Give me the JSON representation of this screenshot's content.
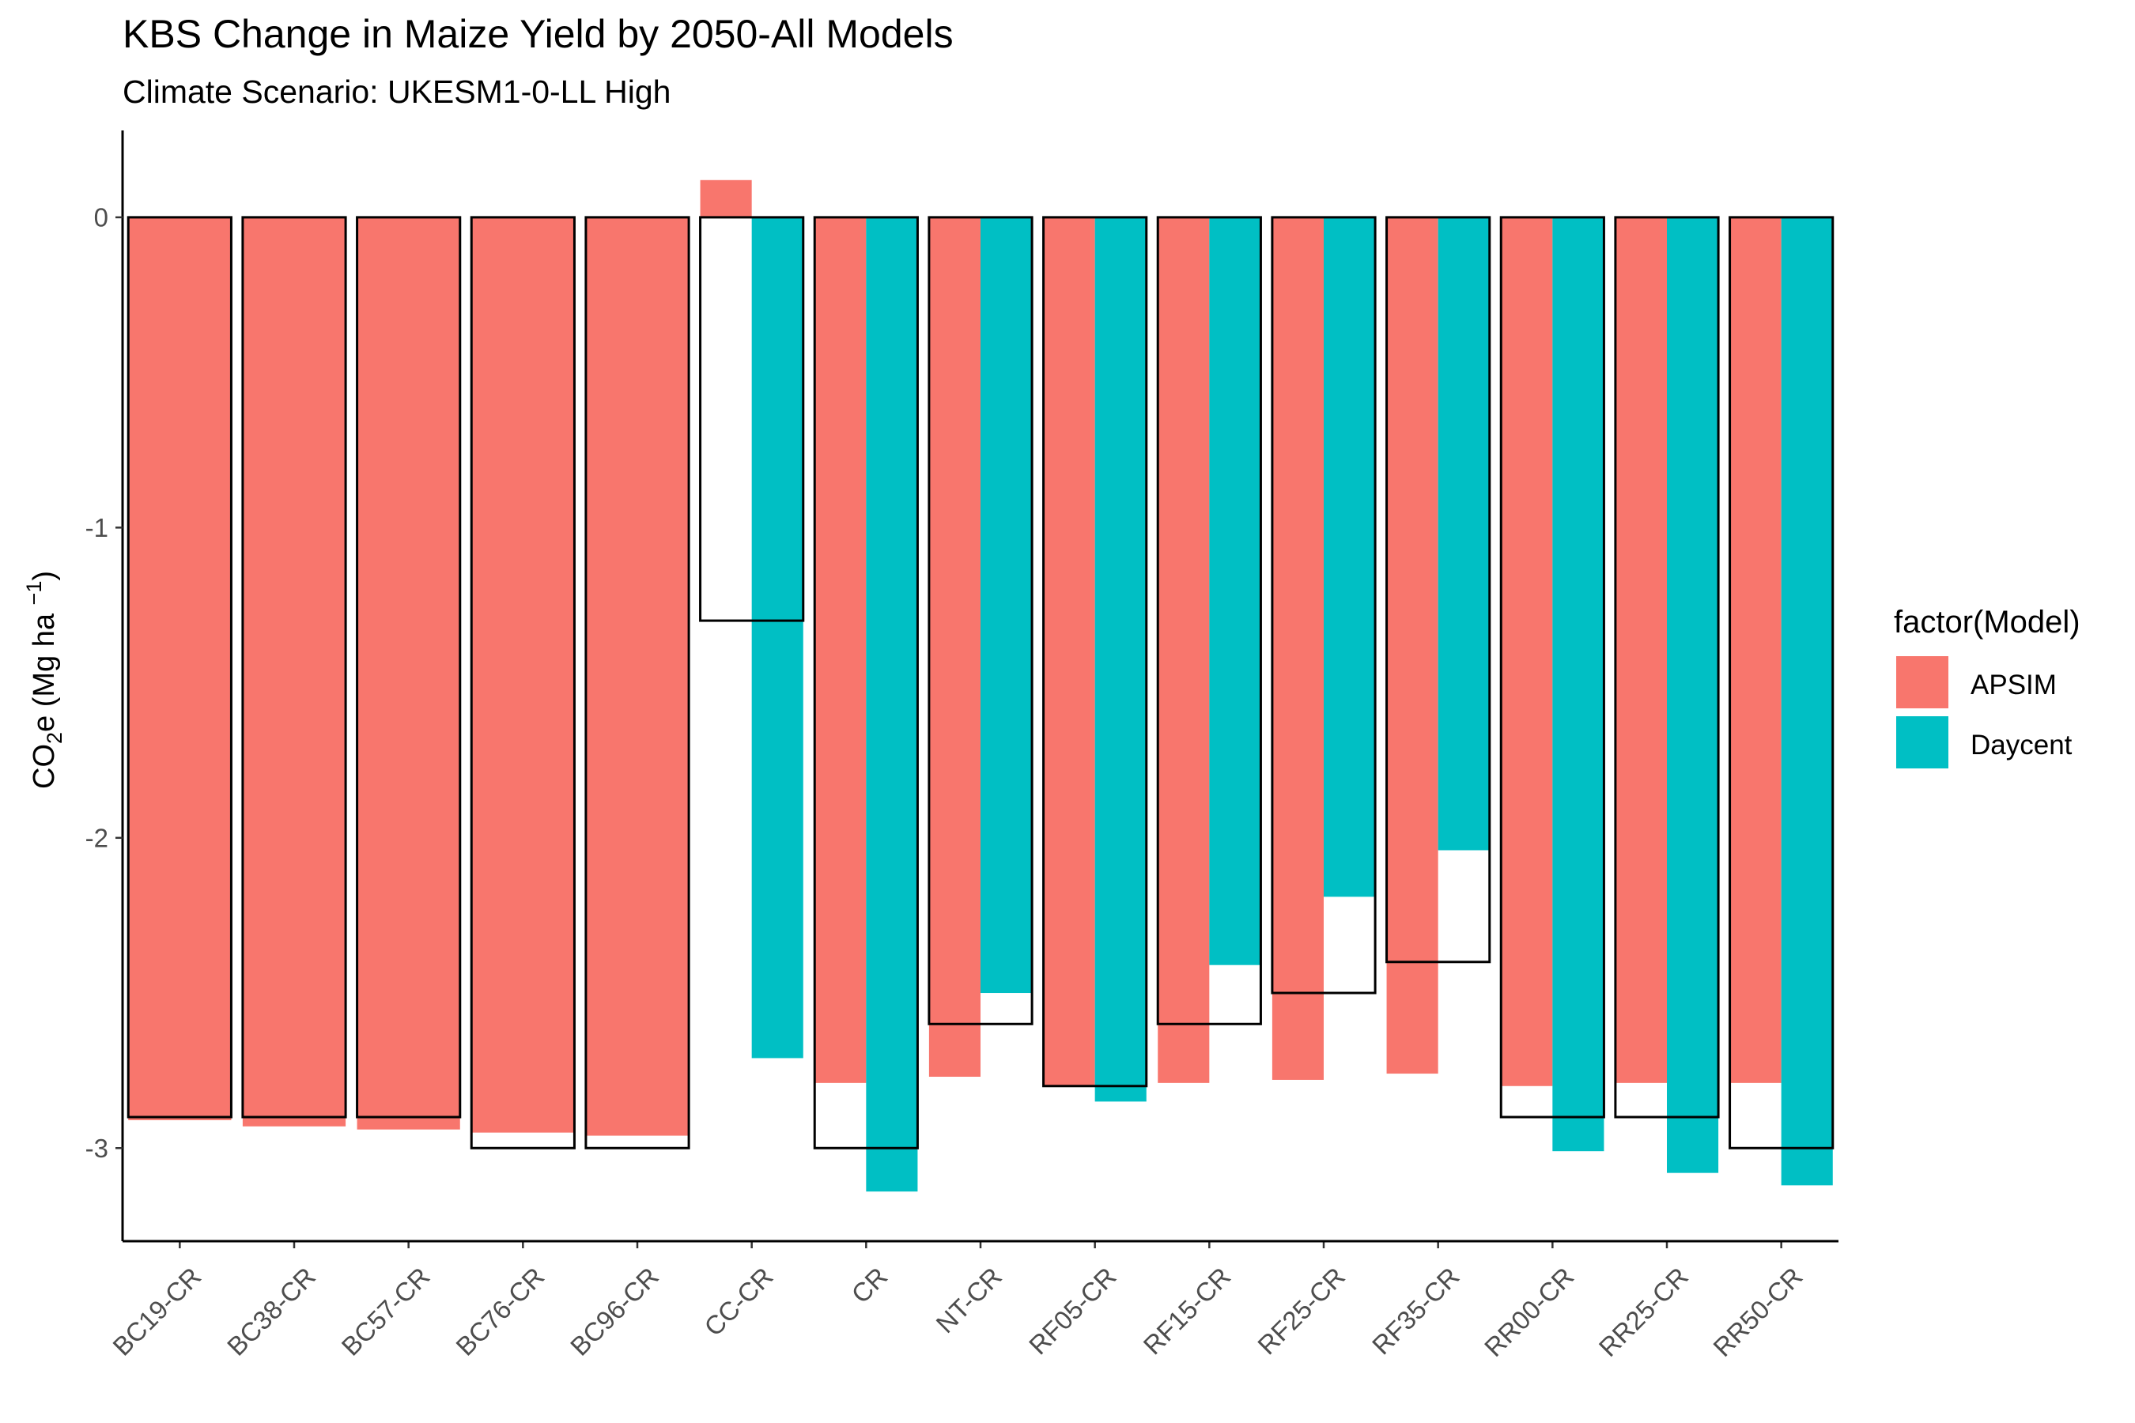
{
  "chart_data": {
    "type": "bar",
    "title": "KBS Change in Maize Yield by 2050-All Models",
    "subtitle": "Climate Scenario: UKESM1-0-LL High",
    "ylabel": "CO2e (Mg ha −1)",
    "ylabel_parts": {
      "main": "CO",
      "sub": "2",
      "after_sub": "e (Mg ha ",
      "sup": "−1",
      "close": ")"
    },
    "ylim": [
      -3.3,
      0.28
    ],
    "yticks": [
      0,
      -1,
      -2,
      -3
    ],
    "ytick_labels": [
      "0",
      "-1",
      "-2",
      "-3"
    ],
    "categories": [
      "BC19-CR",
      "BC38-CR",
      "BC57-CR",
      "BC76-CR",
      "BC96-CR",
      "CC-CR",
      "CR",
      "NT-CR",
      "RF05-CR",
      "RF15-CR",
      "RF25-CR",
      "RF35-CR",
      "RR00-CR",
      "RR25-CR",
      "RR50-CR"
    ],
    "series": [
      {
        "name": "APSIM",
        "color": "#F8766D",
        "values": [
          -2.91,
          -2.93,
          -2.94,
          -2.95,
          -2.96,
          0.12,
          -2.79,
          -2.77,
          -2.8,
          -2.79,
          -2.78,
          -2.76,
          -2.8,
          -2.79,
          -2.79
        ]
      },
      {
        "name": "Daycent",
        "color": "#00BFC4",
        "values": [
          null,
          null,
          null,
          null,
          null,
          -2.71,
          -3.14,
          -2.5,
          -2.85,
          -2.41,
          -2.19,
          -2.04,
          -3.01,
          -3.08,
          -3.12
        ]
      }
    ],
    "observed_outline": [
      -2.9,
      -2.9,
      -2.9,
      -3.0,
      -3.0,
      -1.3,
      -3.0,
      -2.6,
      -2.8,
      -2.6,
      -2.5,
      -2.4,
      -2.9,
      -2.9,
      -3.0
    ],
    "legend": {
      "title": "factor(Model)",
      "position": "right",
      "entries": [
        "APSIM",
        "Daycent"
      ]
    },
    "grid": false
  }
}
